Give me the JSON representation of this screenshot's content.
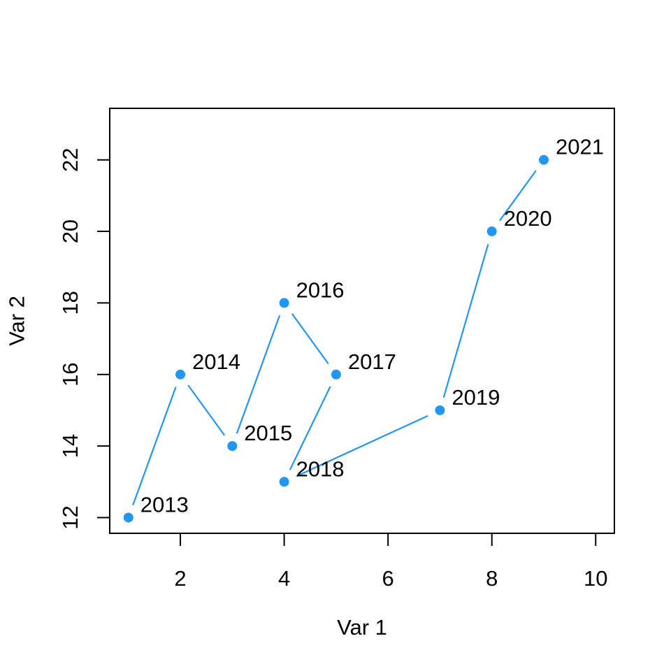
{
  "figure": {
    "background": "#ffffff",
    "text_color": "#000000",
    "axis_color": "#000000",
    "accent_color": "#2196F3"
  },
  "chart_data": {
    "type": "line",
    "subtype": "connected-scatter-with-point-labels",
    "title": "",
    "xlabel": "Var 1",
    "ylabel": "Var 2",
    "points": [
      {
        "x": 1,
        "y": 12,
        "label": "2013"
      },
      {
        "x": 2,
        "y": 16,
        "label": "2014"
      },
      {
        "x": 3,
        "y": 14,
        "label": "2015"
      },
      {
        "x": 4,
        "y": 18,
        "label": "2016"
      },
      {
        "x": 5,
        "y": 16,
        "label": "2017"
      },
      {
        "x": 4,
        "y": 13,
        "label": "2018"
      },
      {
        "x": 7,
        "y": 15,
        "label": "2019"
      },
      {
        "x": 8,
        "y": 20,
        "label": "2020"
      },
      {
        "x": 9,
        "y": 22,
        "label": "2021"
      }
    ],
    "x_ticks": [
      2,
      4,
      6,
      8,
      10
    ],
    "y_ticks": [
      12,
      14,
      16,
      18,
      20,
      22
    ],
    "xlim": [
      0.64,
      10.36
    ],
    "ylim": [
      11.56,
      23.44
    ],
    "grid": false,
    "legend": "none",
    "marker": "filled-circle",
    "line_style": "solid-with-gaps-around-points",
    "colors": {
      "series": "#2196F3",
      "text": "#000000",
      "axis": "#000000",
      "background": "#ffffff"
    }
  }
}
